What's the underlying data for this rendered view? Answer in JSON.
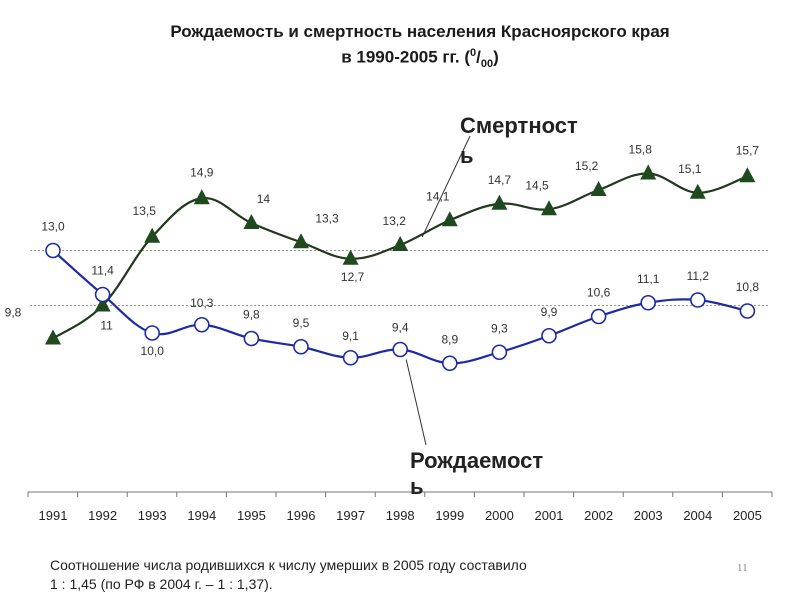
{
  "slide": {
    "title_line1": "Рождаемость и смертность населения Красноярского края",
    "title_line2_prefix": "в 1990-2005 гг. (",
    "title_sup": "0",
    "title_slash": "/",
    "title_sub": "00",
    "title_close": ")",
    "footer_line1": "Соотношение числа родившихся к числу умерших в 2005 году составило",
    "footer_line2": "1 : 1,45 (по РФ в 2004 г. – 1 : 1,37).",
    "page_number": "11"
  },
  "colors": {
    "mortality_line": "#1f3a1a",
    "mortality_marker": "#1f4a1f",
    "birth_line": "#1c2aa8",
    "birth_marker_fill": "#ffffff",
    "birth_marker_stroke": "#1c2aa8",
    "label_text": "#333333"
  },
  "chart_data": {
    "type": "line",
    "categories": [
      "1991",
      "1992",
      "1993",
      "1994",
      "1995",
      "1996",
      "1997",
      "1998",
      "1999",
      "2000",
      "2001",
      "2002",
      "2003",
      "2004",
      "2005"
    ],
    "series": [
      {
        "name": "Смертность",
        "name_part1": "Смертност",
        "name_part2": "ь",
        "values": [
          9.8,
          11,
          13.5,
          14.9,
          14,
          13.3,
          12.7,
          13.2,
          14.1,
          14.7,
          14.5,
          15.2,
          15.8,
          15.1,
          15.7
        ],
        "labels": [
          "9,8",
          "11",
          "13,5",
          "14,9",
          "14",
          "13,3",
          "12,7",
          "13,2",
          "14,1",
          "14,7",
          "14,5",
          "15,2",
          "15,8",
          "15,1",
          "15,7"
        ],
        "marker": "triangle"
      },
      {
        "name": "Рождаемость",
        "name_part1": "Рождаемост",
        "name_part2": "ь",
        "values": [
          13.0,
          11.4,
          10.0,
          10.3,
          9.8,
          9.5,
          9.1,
          9.4,
          8.9,
          9.3,
          9.9,
          10.6,
          11.1,
          11.2,
          10.8
        ],
        "labels": [
          "13,0",
          "11,4",
          "10,0",
          "10,3",
          "9,8",
          "9,5",
          "9,1",
          "9,4",
          "8,9",
          "9,3",
          "9,9",
          "10,6",
          "11,1",
          "11,2",
          "10,8"
        ],
        "marker": "circle"
      }
    ],
    "grid": "dotted horizontal reference lines",
    "legend": "callout labels on lines"
  }
}
